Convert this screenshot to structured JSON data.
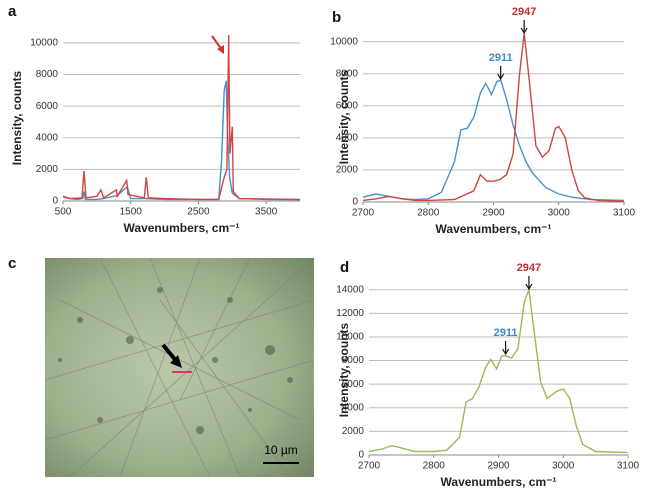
{
  "chart_data": [
    {
      "type": "line",
      "label": "a",
      "y_label": "Intensity, counts",
      "x_label": "Wavenumbers, cm⁻¹",
      "xlim": [
        500,
        4000
      ],
      "xticks": [
        500,
        1500,
        2500,
        3500
      ],
      "ylim": [
        0,
        10500
      ],
      "yticks": [
        0,
        2000,
        4000,
        6000,
        8000,
        10000
      ],
      "grid": true,
      "series": [
        {
          "color": "#4a8fd0",
          "x": [
            500,
            600,
            700,
            790,
            810,
            830,
            1000,
            1100,
            1300,
            1450,
            1500,
            1700,
            2000,
            2500,
            2800,
            2840,
            2880,
            2910,
            2930,
            2960,
            3000,
            3100,
            3500,
            4000
          ],
          "values": [
            250,
            150,
            100,
            150,
            600,
            100,
            100,
            150,
            350,
            900,
            150,
            150,
            100,
            100,
            100,
            2500,
            7000,
            7600,
            4500,
            1500,
            500,
            150,
            100,
            80
          ]
        },
        {
          "color": "#d0453f",
          "x": [
            500,
            600,
            780,
            810,
            840,
            1000,
            1060,
            1100,
            1290,
            1300,
            1440,
            1460,
            1700,
            1730,
            1760,
            2000,
            2500,
            2800,
            2880,
            2920,
            2947,
            2965,
            3000,
            3015,
            3100,
            4000
          ],
          "values": [
            300,
            150,
            200,
            1900,
            200,
            300,
            700,
            200,
            700,
            300,
            1300,
            400,
            200,
            1500,
            200,
            150,
            100,
            100,
            1500,
            2000,
            10500,
            3000,
            4700,
            600,
            150,
            100
          ]
        }
      ]
    },
    {
      "type": "line",
      "label": "b",
      "y_label": "Intensity, counts",
      "x_label": "Wavenumbers, cm⁻¹",
      "xlim": [
        2700,
        3100
      ],
      "xticks": [
        2700,
        2800,
        2900,
        3000,
        3100
      ],
      "ylim": [
        0,
        10600
      ],
      "yticks": [
        0,
        2000,
        4000,
        6000,
        8000,
        10000
      ],
      "grid": true,
      "annotations": [
        {
          "text": "2911",
          "x": 2911,
          "color": "#3a8ccc"
        },
        {
          "text": "2947",
          "x": 2947,
          "color": "#c0302a"
        }
      ],
      "series": [
        {
          "color": "#4a8fd0",
          "x": [
            2700,
            2720,
            2740,
            2760,
            2780,
            2800,
            2820,
            2840,
            2850,
            2860,
            2870,
            2880,
            2888,
            2897,
            2905,
            2911,
            2920,
            2930,
            2940,
            2950,
            2960,
            2980,
            3000,
            3020,
            3050,
            3100
          ],
          "values": [
            300,
            500,
            350,
            200,
            150,
            200,
            600,
            2500,
            4500,
            4600,
            5300,
            6800,
            7400,
            6700,
            7500,
            7600,
            6400,
            4800,
            3500,
            2500,
            1800,
            900,
            500,
            300,
            150,
            100
          ]
        },
        {
          "color": "#d0453f",
          "x": [
            2700,
            2720,
            2740,
            2760,
            2780,
            2800,
            2840,
            2870,
            2880,
            2890,
            2900,
            2910,
            2920,
            2930,
            2940,
            2947,
            2955,
            2965,
            2975,
            2985,
            2995,
            3000,
            3010,
            3020,
            3030,
            3040,
            3060,
            3100
          ],
          "values": [
            100,
            200,
            350,
            200,
            100,
            100,
            150,
            700,
            1700,
            1300,
            1300,
            1400,
            1700,
            3000,
            8000,
            10500,
            7500,
            3500,
            2800,
            3200,
            4600,
            4700,
            4000,
            2000,
            700,
            250,
            100,
            50
          ]
        }
      ]
    },
    {
      "type": "line",
      "label": "d",
      "y_label": "Intensity, counts",
      "x_label": "Wavenumbers, cm⁻¹",
      "xlim": [
        2700,
        3100
      ],
      "xticks": [
        2700,
        2800,
        2900,
        3000,
        3100
      ],
      "ylim": [
        0,
        14400
      ],
      "yticks": [
        0,
        2000,
        4000,
        6000,
        8000,
        10000,
        12000,
        14000
      ],
      "grid": true,
      "annotations": [
        {
          "text": "2911",
          "x": 2911,
          "color": "#3a8ccc"
        },
        {
          "text": "2947",
          "x": 2947,
          "color": "#c0302a"
        }
      ],
      "series": [
        {
          "color": "#9bbb59",
          "x": [
            2700,
            2720,
            2735,
            2750,
            2770,
            2800,
            2820,
            2840,
            2850,
            2860,
            2870,
            2880,
            2888,
            2897,
            2905,
            2911,
            2920,
            2930,
            2940,
            2947,
            2955,
            2965,
            2975,
            2990,
            3000,
            3010,
            3020,
            3030,
            3050,
            3100
          ],
          "values": [
            300,
            500,
            800,
            600,
            300,
            300,
            400,
            1500,
            4500,
            4800,
            5800,
            7400,
            8100,
            7300,
            8400,
            8400,
            8200,
            9000,
            13000,
            14000,
            10500,
            6200,
            4800,
            5400,
            5600,
            4800,
            2500,
            900,
            300,
            200
          ]
        }
      ]
    }
  ],
  "micrograph": {
    "label": "c",
    "scale_bar": "10 µm"
  }
}
